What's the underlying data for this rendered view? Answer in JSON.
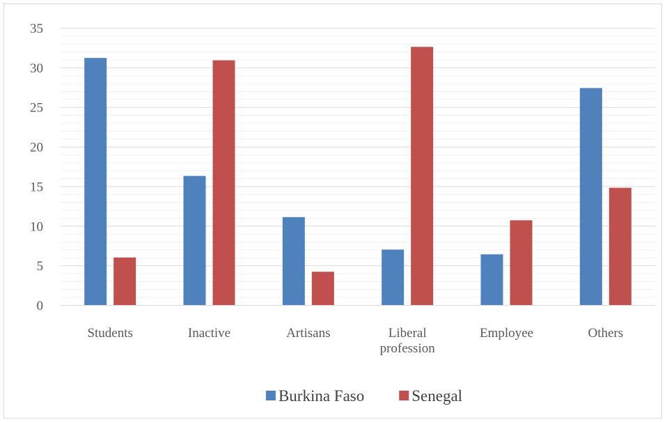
{
  "chart_data": {
    "type": "bar",
    "categories": [
      [
        "Students"
      ],
      [
        "Inactive"
      ],
      [
        "Artisans"
      ],
      [
        "Liberal",
        "profession"
      ],
      [
        "Employee"
      ],
      [
        "Others"
      ]
    ],
    "series": [
      {
        "name": "Burkina Faso",
        "color": "#4f81bd",
        "values": [
          31.2,
          16.3,
          11.1,
          7.0,
          6.4,
          27.4
        ]
      },
      {
        "name": "Senegal",
        "color": "#c0504d",
        "values": [
          6.0,
          30.9,
          4.2,
          32.6,
          10.7,
          14.8
        ]
      }
    ],
    "yticks": [
      "0",
      "5",
      "10",
      "15",
      "20",
      "25",
      "30",
      "35"
    ],
    "ylim": [
      0,
      35
    ],
    "minor_gridlines_step": 1,
    "major_gridlines_step": 5,
    "legend_position": "bottom",
    "title": "",
    "xlabel": "",
    "ylabel": ""
  }
}
